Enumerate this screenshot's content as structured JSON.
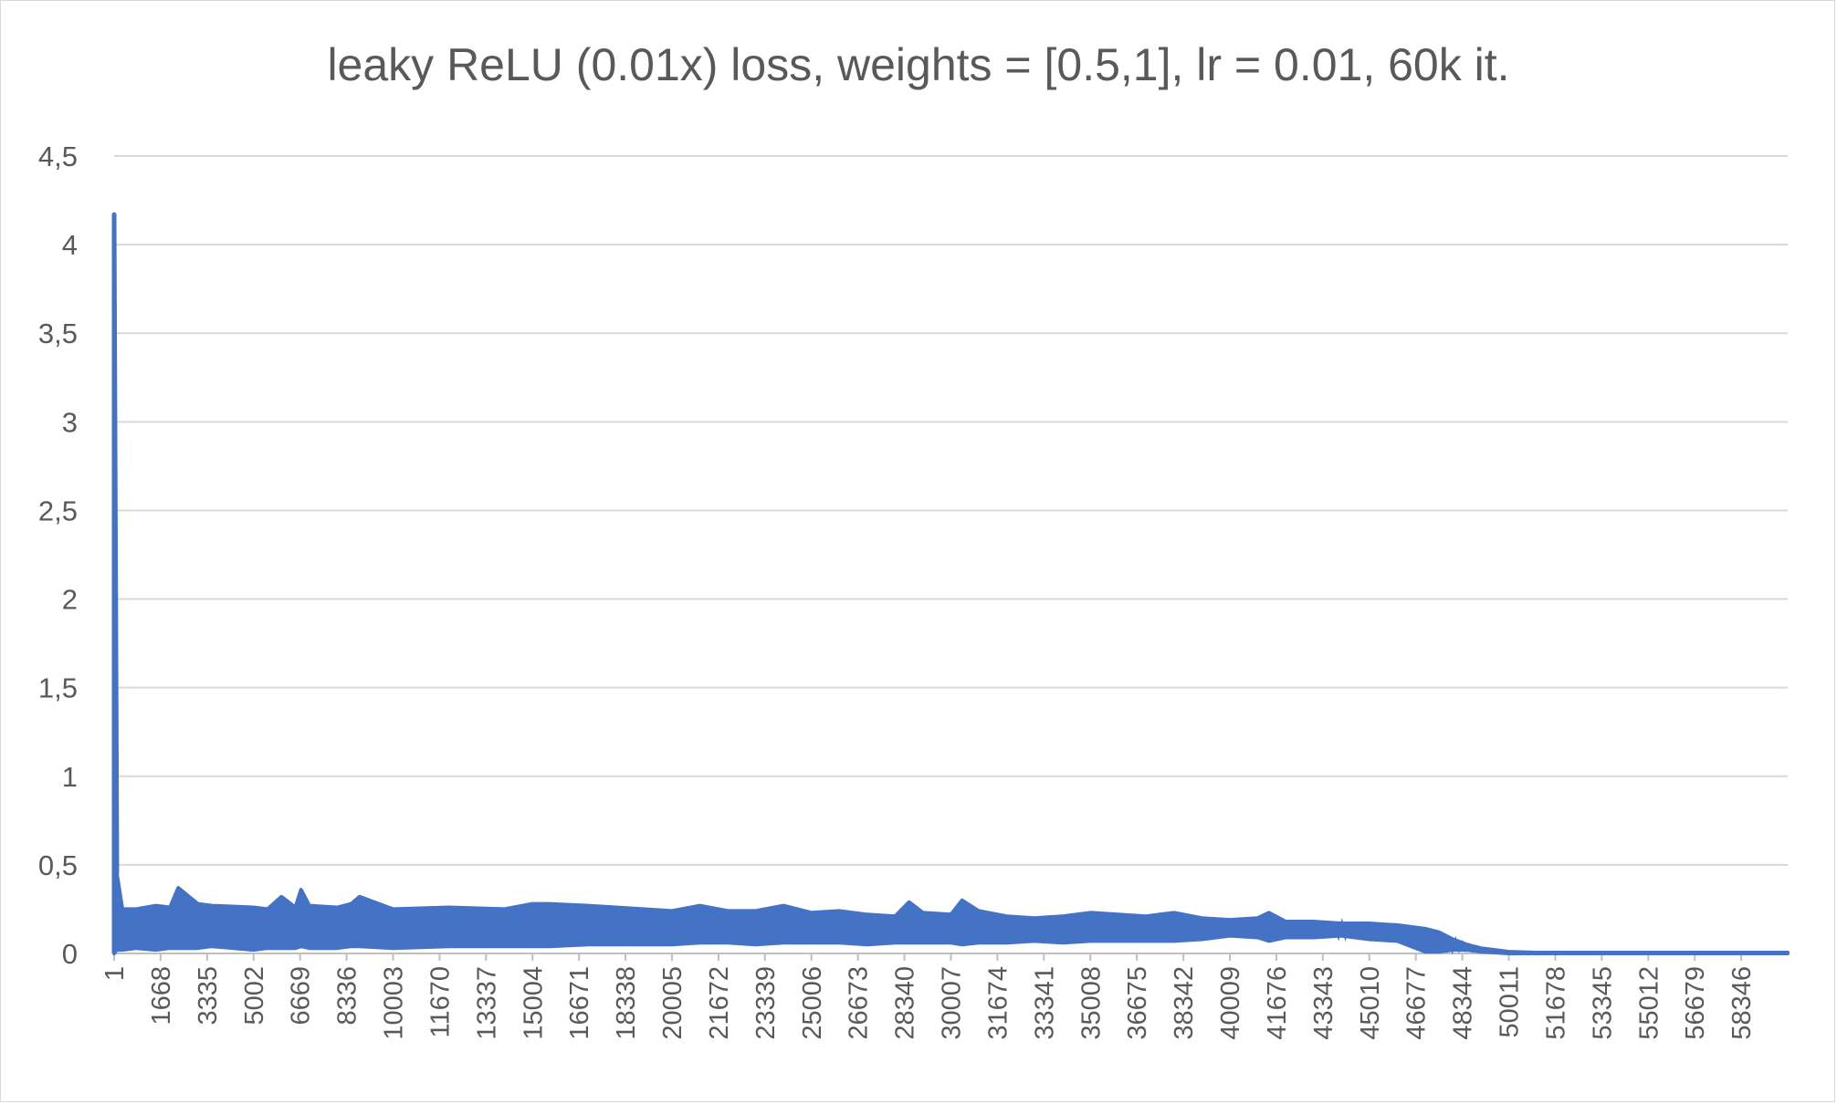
{
  "chart_data": {
    "type": "line",
    "title": "leaky ReLU (0.01x) loss, weights = [0.5,1], lr = 0.01, 60k it.",
    "xlabel": "",
    "ylabel": "",
    "ylim": [
      0,
      4.5
    ],
    "yticks": [
      "0",
      "0,5",
      "1",
      "1,5",
      "2",
      "2,5",
      "3",
      "3,5",
      "4",
      "4,5"
    ],
    "x_tick_labels": [
      "1",
      "1668",
      "3335",
      "5002",
      "6669",
      "8336",
      "10003",
      "11670",
      "13337",
      "15004",
      "16671",
      "18338",
      "20005",
      "21672",
      "23339",
      "25006",
      "26673",
      "28340",
      "30007",
      "31674",
      "33341",
      "35008",
      "36675",
      "38342",
      "40009",
      "41676",
      "43343",
      "45010",
      "46677",
      "48344",
      "50011",
      "51678",
      "53345",
      "55012",
      "56679",
      "58346"
    ],
    "xlim": [
      1,
      60000
    ],
    "grid": true,
    "legend": "none",
    "color": "#4472c4",
    "series": [
      {
        "x": [
          1,
          100,
          300,
          800,
          1500,
          2000,
          2300,
          3000,
          3500,
          5000,
          5500,
          6000,
          6500,
          6700,
          7000,
          8000,
          8500,
          8800,
          10000,
          12000,
          14000,
          15000,
          15600,
          17000,
          18000,
          20000,
          21000,
          22000,
          23000,
          24000,
          25000,
          26000,
          27000,
          28000,
          28500,
          29000,
          30000,
          30400,
          31000,
          32000,
          33000,
          34000,
          35000,
          36000,
          37000,
          38000,
          39000,
          40000,
          41000,
          41400,
          42000,
          43000,
          44000,
          45000,
          46000,
          46500,
          47000,
          47500,
          48000,
          48500,
          49000,
          49500,
          50000,
          51000,
          52000,
          55000,
          58000,
          60000
        ],
        "y_upper": [
          4.17,
          0.45,
          0.25,
          0.25,
          0.27,
          0.26,
          0.37,
          0.28,
          0.27,
          0.26,
          0.25,
          0.32,
          0.26,
          0.36,
          0.27,
          0.26,
          0.28,
          0.32,
          0.25,
          0.26,
          0.25,
          0.28,
          0.28,
          0.27,
          0.26,
          0.24,
          0.27,
          0.24,
          0.24,
          0.27,
          0.23,
          0.24,
          0.22,
          0.21,
          0.29,
          0.23,
          0.22,
          0.3,
          0.24,
          0.21,
          0.2,
          0.21,
          0.23,
          0.22,
          0.21,
          0.23,
          0.2,
          0.19,
          0.2,
          0.23,
          0.18,
          0.18,
          0.17,
          0.17,
          0.16,
          0.15,
          0.14,
          0.12,
          0.08,
          0.05,
          0.03,
          0.02,
          0.01,
          0.005,
          0.005,
          0.005,
          0.005,
          0.005
        ],
        "y_lower": [
          0.0,
          0.02,
          0.02,
          0.03,
          0.02,
          0.03,
          0.03,
          0.03,
          0.04,
          0.02,
          0.03,
          0.03,
          0.03,
          0.04,
          0.03,
          0.03,
          0.04,
          0.04,
          0.03,
          0.04,
          0.04,
          0.04,
          0.04,
          0.05,
          0.05,
          0.05,
          0.06,
          0.06,
          0.05,
          0.06,
          0.06,
          0.06,
          0.05,
          0.06,
          0.06,
          0.06,
          0.06,
          0.05,
          0.06,
          0.06,
          0.07,
          0.06,
          0.07,
          0.07,
          0.07,
          0.07,
          0.08,
          0.1,
          0.09,
          0.07,
          0.09,
          0.09,
          0.1,
          0.08,
          0.07,
          0.04,
          0.01,
          0.01,
          0.02,
          0.02,
          0.01,
          0.005,
          0.0,
          0.0,
          0.0,
          0.0,
          0.0,
          0.0
        ]
      }
    ]
  }
}
